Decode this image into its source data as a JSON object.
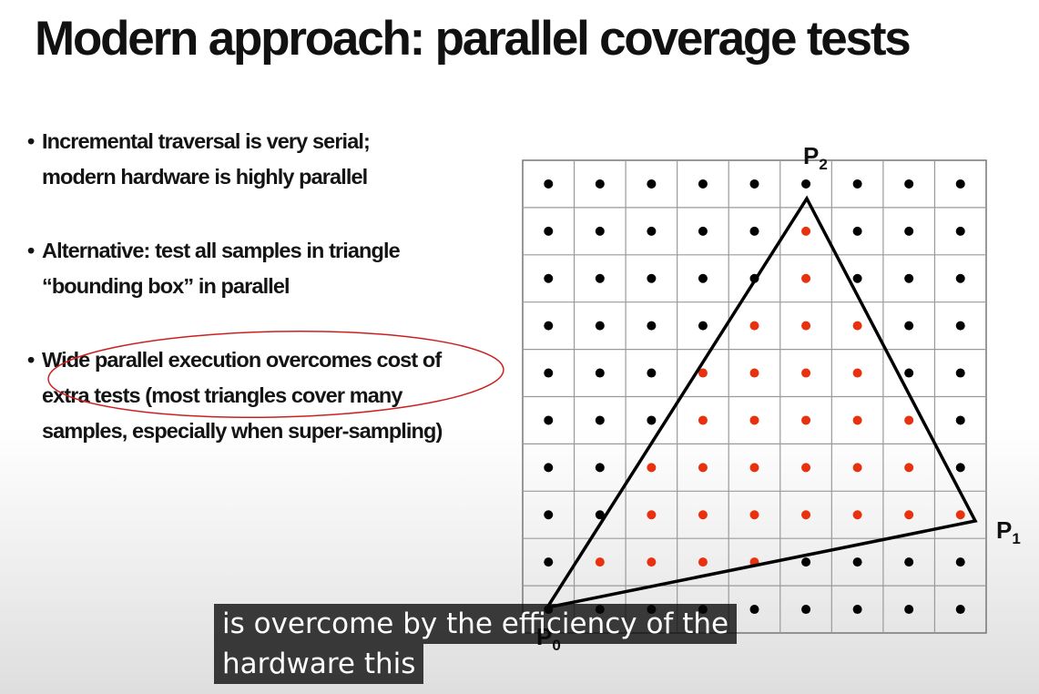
{
  "slide": {
    "title": "Modern approach: parallel coverage tests",
    "bullets": [
      {
        "lines": [
          "Incremental traversal is very serial;",
          "modern hardware is highly parallel"
        ]
      },
      {
        "lines": [
          "Alternative: test all samples in triangle",
          "“bounding box” in parallel"
        ]
      },
      {
        "lines": [
          "Wide parallel execution overcomes cost of",
          "extra tests (most triangles cover many",
          "samples, especially when super-sampling)"
        ]
      }
    ],
    "bullet_symbol": "•"
  },
  "diagram": {
    "grid": {
      "rows": 10,
      "cols": 9
    },
    "vertex_labels": {
      "p0": {
        "base": "P",
        "sub": "0"
      },
      "p1": {
        "base": "P",
        "sub": "1"
      },
      "p2": {
        "base": "P",
        "sub": "2"
      }
    },
    "covered_samples": [
      [
        1,
        5
      ],
      [
        2,
        5
      ],
      [
        3,
        4
      ],
      [
        3,
        5
      ],
      [
        3,
        6
      ],
      [
        4,
        3
      ],
      [
        4,
        4
      ],
      [
        4,
        5
      ],
      [
        4,
        6
      ],
      [
        5,
        3
      ],
      [
        5,
        4
      ],
      [
        5,
        5
      ],
      [
        5,
        6
      ],
      [
        5,
        7
      ],
      [
        6,
        2
      ],
      [
        6,
        3
      ],
      [
        6,
        4
      ],
      [
        6,
        5
      ],
      [
        6,
        6
      ],
      [
        6,
        7
      ],
      [
        7,
        2
      ],
      [
        7,
        3
      ],
      [
        7,
        4
      ],
      [
        7,
        5
      ],
      [
        7,
        6
      ],
      [
        7,
        7
      ],
      [
        7,
        8
      ],
      [
        8,
        1
      ],
      [
        8,
        2
      ],
      [
        8,
        3
      ],
      [
        8,
        4
      ]
    ],
    "colors": {
      "covered": "#e8310e",
      "uncovered": "#000000",
      "grid": "#9a9a9a",
      "annotation_ellipse": "#cc2020"
    }
  },
  "caption": {
    "lines": [
      "is overcome by the efficiency of the",
      "hardware this"
    ]
  }
}
